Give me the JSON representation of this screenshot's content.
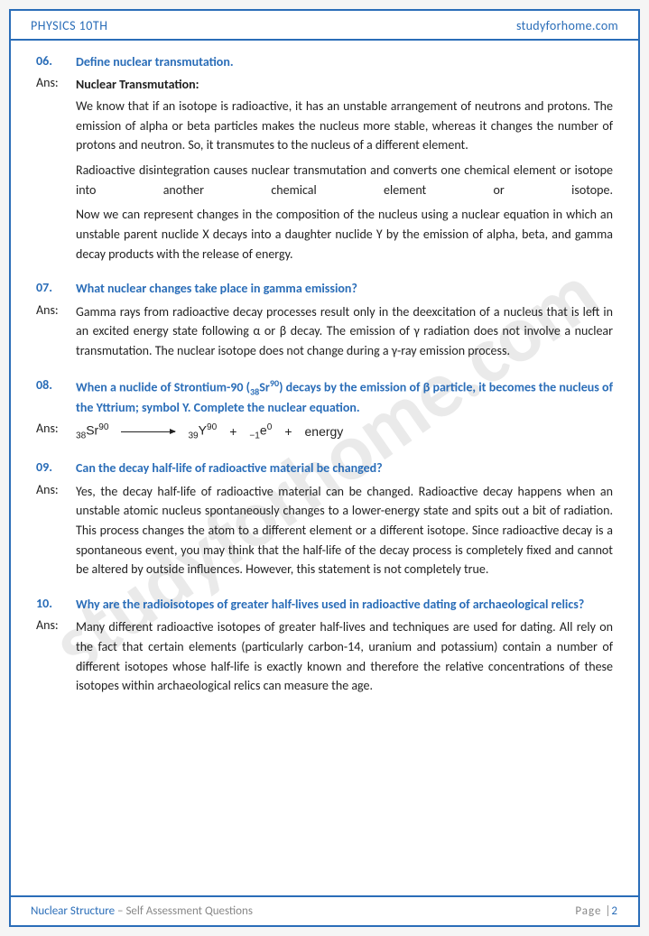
{
  "header": {
    "left": "PHYSICS 10TH",
    "right": "studyforhome.com"
  },
  "watermark": "studyforhome.com",
  "questions": [
    {
      "num": "06.",
      "q": "Define nuclear transmutation.",
      "ans_label": "Ans:",
      "heading": "Nuclear Transmutation:",
      "paras": [
        "We know that if an isotope is radioactive, it has an unstable arrangement of neutrons and protons. The emission of alpha or beta particles makes the nucleus more stable, whereas it changes the number of protons and neutron. So, it transmutes to the nucleus of a different element.",
        "Radioactive disintegration causes nuclear transmutation and converts one chemical element or isotope into another chemical element or isotope.",
        "Now we can represent changes in the composition of the nucleus using a nuclear equation in which an unstable parent nuclide X decays into a daughter nuclide Y by the emission of alpha, beta, and gamma decay products with the release of energy."
      ]
    },
    {
      "num": "07.",
      "q": "What nuclear changes take place in gamma emission?",
      "ans_label": "Ans:",
      "paras": [
        "Gamma rays from radioactive decay processes result only in the deexcitation of a nucleus that is left in an excited energy state following α or β decay. The emission of γ radiation does not involve a nuclear transmutation. The nuclear isotope does not change during a γ-ray emission process."
      ]
    },
    {
      "num": "08.",
      "q_html": "When a nuclide of Strontium-90 (<sub>38</sub>Sr<sup>90</sup>) decays by the emission of β particle, it becomes the nucleus of the Yttrium; symbol Y. Complete the nuclear equation.",
      "ans_label": "Ans:",
      "equation": {
        "left_sub": "38",
        "left_sym": "Sr",
        "left_sup": "90",
        "right1_sub": "39",
        "right1_sym": "Y",
        "right1_sup": "90",
        "right2_sub": "−1",
        "right2_sym": "e",
        "right2_sup": "0",
        "plus": "+",
        "energy": "energy"
      }
    },
    {
      "num": "09.",
      "q": "Can the decay half-life of radioactive material be changed?",
      "ans_label": "Ans:",
      "paras": [
        "Yes, the decay half-life of radioactive material can be changed. Radioactive decay happens when an unstable atomic nucleus spontaneously changes to a lower-energy state and spits out a bit of radiation. This process changes the atom to a different element or a different isotope. Since radioactive decay is a spontaneous event, you may think that the half-life of the decay process is completely fixed and cannot be altered by outside influences. However, this statement is not completely true."
      ]
    },
    {
      "num": "10.",
      "q": "Why are the radioisotopes of greater half-lives used in radioactive dating of archaeological relics?",
      "q_justify_full": true,
      "ans_label": "Ans:",
      "paras": [
        "Many different radioactive isotopes of greater half-lives and techniques are used for dating. All rely on the fact that certain elements (particularly carbon-14, uranium and potassium) contain a number of different isotopes whose half-life is exactly known and therefore the relative concentrations of these isotopes within archaeological relics can measure the age."
      ]
    }
  ],
  "footer": {
    "chapter": "Nuclear Structure",
    "sep": " – ",
    "subtitle": "Self Assessment Questions",
    "page_label": "Page |",
    "page_num": "2"
  },
  "colors": {
    "accent": "#2a6db8",
    "text": "#222222",
    "grey": "#888888",
    "watermark": "rgba(140,140,140,0.18)",
    "bg": "#ffffff"
  }
}
